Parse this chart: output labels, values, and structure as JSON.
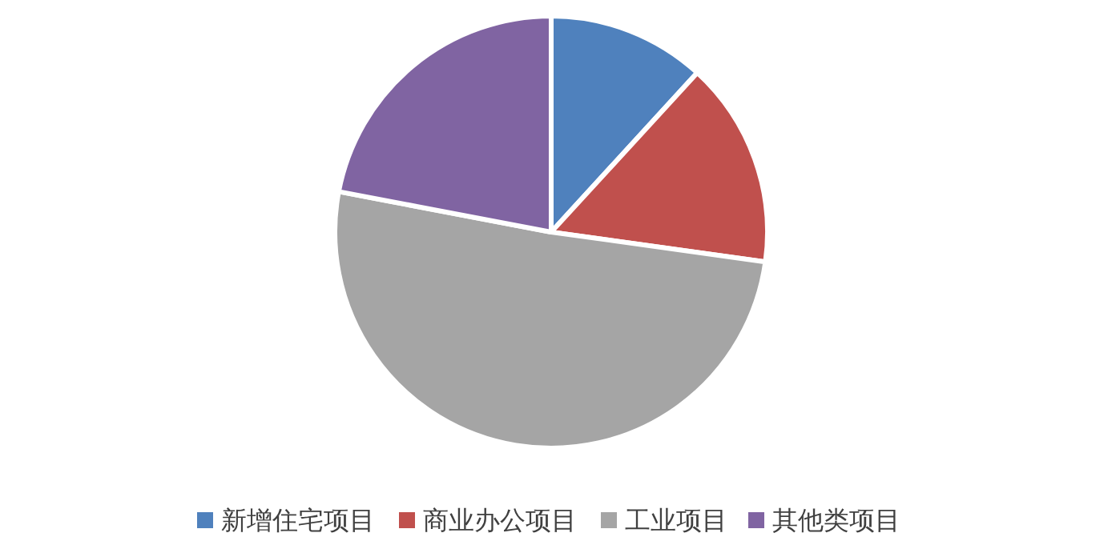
{
  "chart_data": {
    "type": "pie",
    "categories": [
      "新增住宅项目",
      "商业办公项目",
      "工业项目",
      "其他类项目"
    ],
    "values": [
      11.8,
      15.4,
      50.8,
      22.0
    ],
    "colors": [
      "#4f81bd",
      "#c0504d",
      "#a5a5a5",
      "#8064a2"
    ],
    "legend": "bottom"
  }
}
